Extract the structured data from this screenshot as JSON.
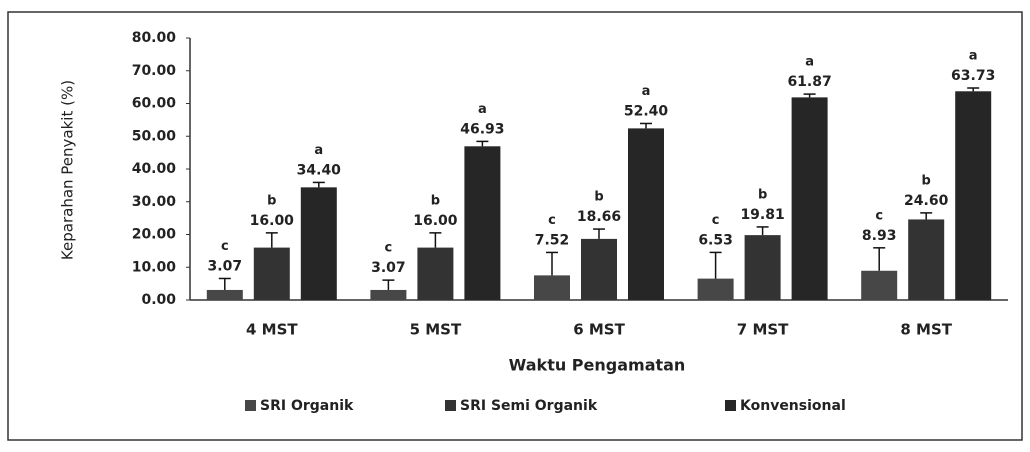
{
  "chart_data": {
    "type": "bar",
    "y_label": "Keparahan Penyakit (%)",
    "x_label": "Waktu Pengamatan",
    "categories": [
      "4 MST",
      "5 MST",
      "6 MST",
      "7 MST",
      "8 MST"
    ],
    "series": [
      {
        "name": "SRI Organik",
        "color": "#474747",
        "values": [
          3.07,
          3.07,
          7.52,
          6.53,
          8.93
        ],
        "value_labels": [
          "3.07",
          "3.07",
          "7.52",
          "6.53",
          "8.93"
        ],
        "errors": [
          3.5,
          3,
          7,
          8,
          7
        ],
        "letters": [
          "c",
          "c",
          "c",
          "c",
          "c"
        ]
      },
      {
        "name": "SRI Semi Organik",
        "color": "#333333",
        "values": [
          16,
          16,
          18.66,
          19.81,
          24.6
        ],
        "value_labels": [
          "16.00",
          "16.00",
          "18.66",
          "19.81",
          "24.60"
        ],
        "errors": [
          4.5,
          4.5,
          3,
          2.5,
          2
        ],
        "letters": [
          "b",
          "b",
          "b",
          "b",
          "b"
        ]
      },
      {
        "name": "Konvensional",
        "color": "#262626",
        "values": [
          34.4,
          46.93,
          52.4,
          61.87,
          63.73
        ],
        "value_labels": [
          "34.40",
          "46.93",
          "52.40",
          "61.87",
          "63.73"
        ],
        "errors": [
          1.5,
          1.5,
          1.5,
          1,
          1
        ],
        "letters": [
          "a",
          "a",
          "a",
          "a",
          "a"
        ]
      }
    ],
    "ylim": [
      0,
      80
    ],
    "yticks": [
      {
        "value": 0,
        "label": "0.00"
      },
      {
        "value": 10,
        "label": "10.00"
      },
      {
        "value": 20,
        "label": "20.00"
      },
      {
        "value": 30,
        "label": "30.00"
      },
      {
        "value": 40,
        "label": "40.00"
      },
      {
        "value": 50,
        "label": "50.00"
      },
      {
        "value": 60,
        "label": "60.00"
      },
      {
        "value": 70,
        "label": "70.00"
      },
      {
        "value": 80,
        "label": "80.00"
      }
    ],
    "legend": "bottom"
  }
}
